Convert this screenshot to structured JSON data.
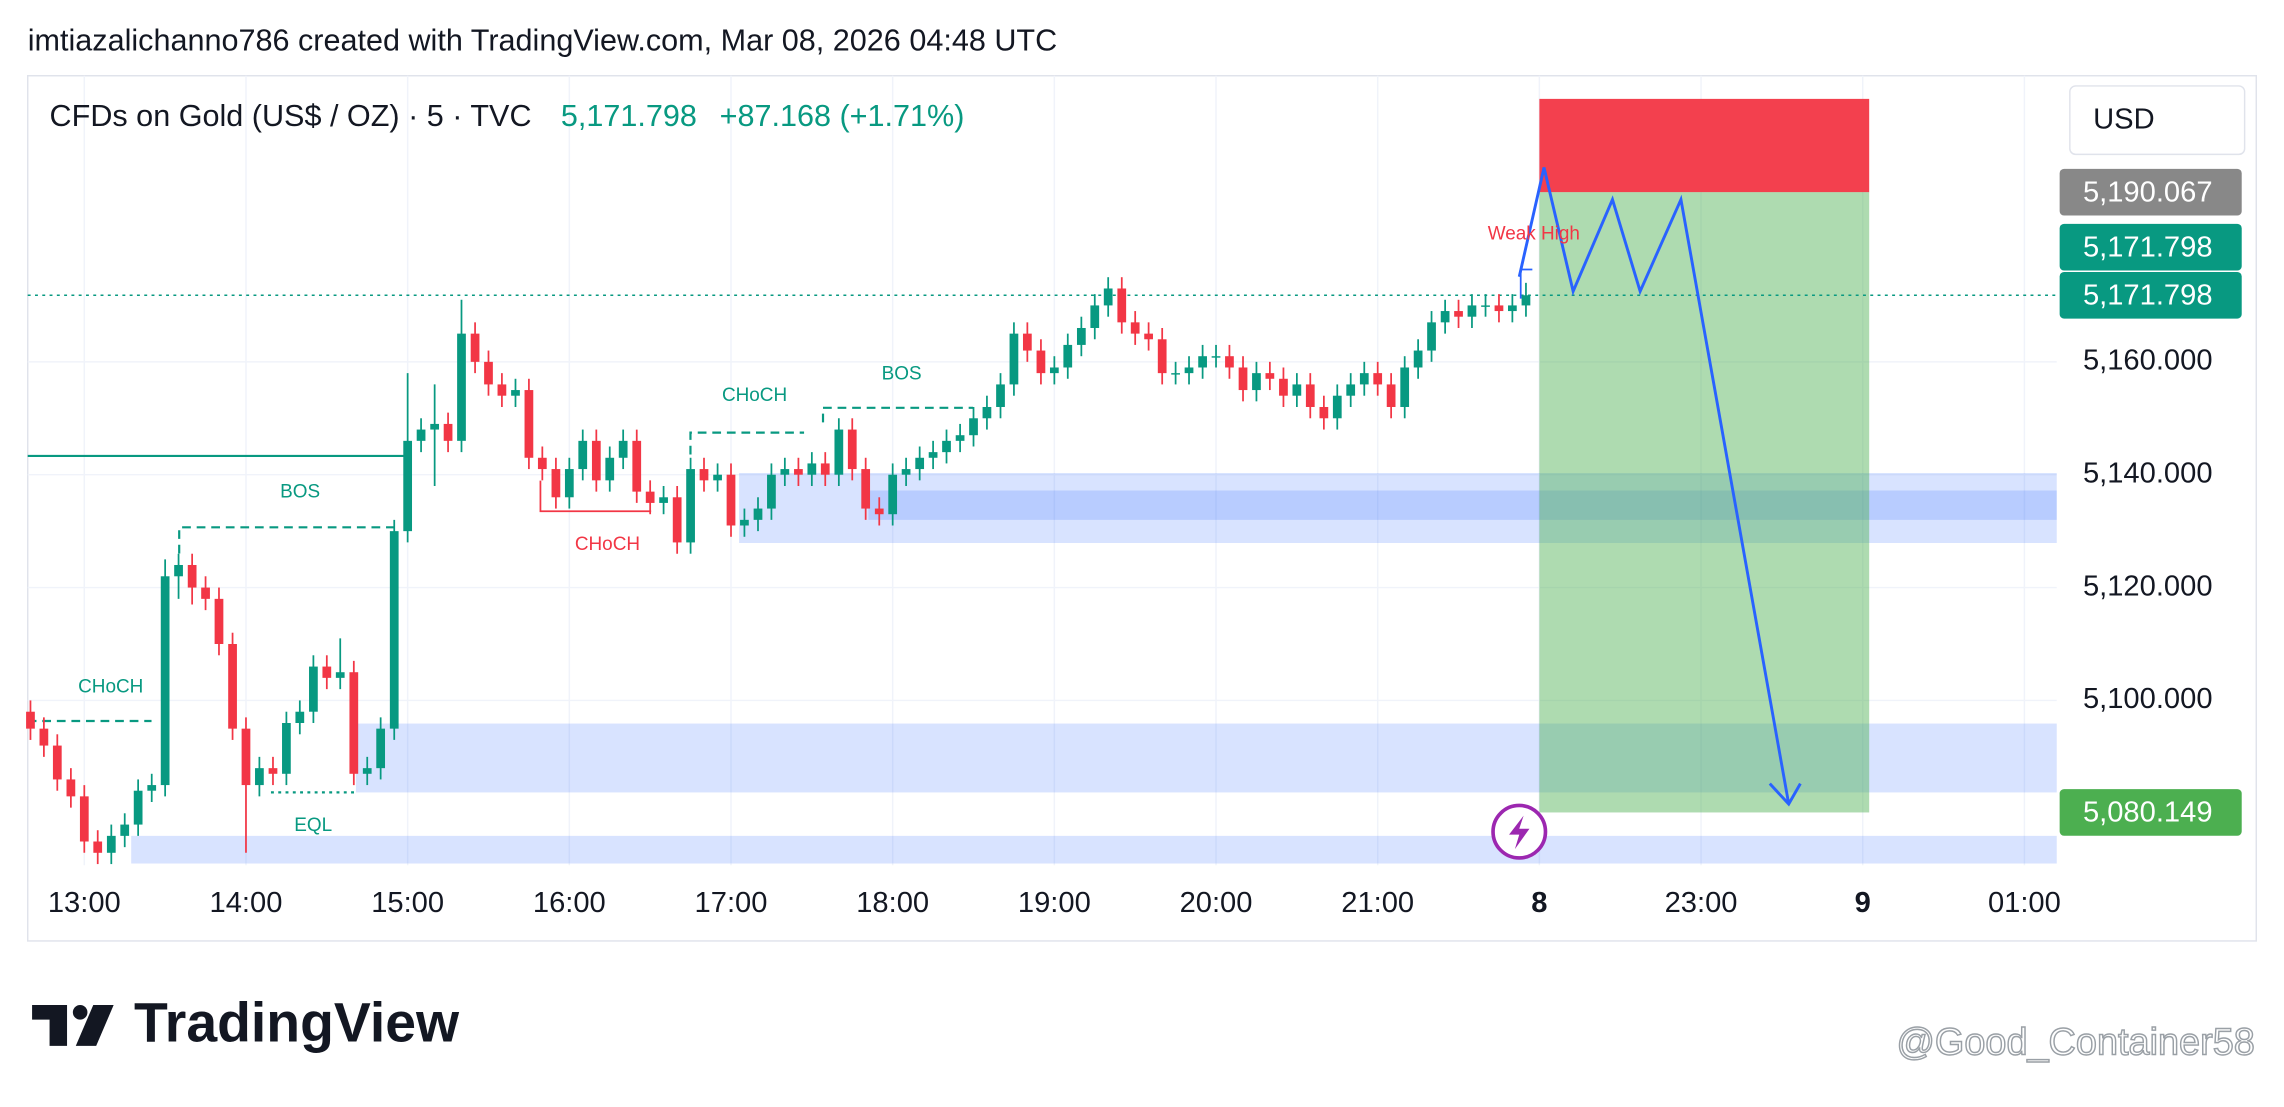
{
  "chart_data": {
    "type": "candlestick",
    "header": "imtiazalichanno786 created with TradingView.com, Mar 08, 2026 04:48 UTC",
    "title": "CFDs on Gold (US$ / OZ) · 5 · TVC",
    "last_price": "5,171.798",
    "change": "+87.168 (+1.71%)",
    "currency": "USD",
    "logo": "TradingView",
    "watermark": "@Good_Container58",
    "up_color": "#089981",
    "down_color": "#f23645",
    "xlim": [
      12.65,
      25.2
    ],
    "ylim": [
      5070.8,
      5210.7
    ],
    "xticks": [
      {
        "value": 13,
        "label": "13:00"
      },
      {
        "value": 14,
        "label": "14:00"
      },
      {
        "value": 15,
        "label": "15:00"
      },
      {
        "value": 16,
        "label": "16:00"
      },
      {
        "value": 17,
        "label": "17:00"
      },
      {
        "value": 18,
        "label": "18:00"
      },
      {
        "value": 19,
        "label": "19:00"
      },
      {
        "value": 20,
        "label": "20:00"
      },
      {
        "value": 21,
        "label": "21:00"
      },
      {
        "value": 22,
        "label": "8"
      },
      {
        "value": 23,
        "label": "23:00"
      },
      {
        "value": 24,
        "label": "9"
      },
      {
        "value": 25,
        "label": "01:00"
      }
    ],
    "yticks": [
      {
        "value": 5100,
        "label": "5,100.000"
      },
      {
        "value": 5120,
        "label": "5,120.000"
      },
      {
        "value": 5140,
        "label": "5,140.000"
      },
      {
        "value": 5160,
        "label": "5,160.000"
      }
    ],
    "grid": true,
    "price_labels": [
      {
        "value": 5190.067,
        "label": "5,190.067",
        "color": "#888888"
      },
      {
        "value": 5171.798,
        "label": "5,171.798",
        "color": "#089981"
      },
      {
        "value": 5171.798,
        "label": "5,171.798",
        "color": "#089981"
      },
      {
        "value": 5080.149,
        "label": "5,080.149",
        "color": "#4caf50"
      }
    ],
    "x": [
      12.667,
      12.75,
      12.833,
      12.917,
      13,
      13.083,
      13.167,
      13.25,
      13.333,
      13.417,
      13.5,
      13.583,
      13.667,
      13.75,
      13.833,
      13.917,
      14,
      14.083,
      14.167,
      14.25,
      14.333,
      14.417,
      14.5,
      14.583,
      14.667,
      14.75,
      14.833,
      14.917,
      15,
      15.083,
      15.167,
      15.25,
      15.333,
      15.417,
      15.5,
      15.583,
      15.667,
      15.75,
      15.833,
      15.917,
      16,
      16.083,
      16.167,
      16.25,
      16.333,
      16.417,
      16.5,
      16.583,
      16.667,
      16.75,
      16.833,
      16.917,
      17,
      17.083,
      17.167,
      17.25,
      17.333,
      17.417,
      17.5,
      17.583,
      17.667,
      17.75,
      17.833,
      17.917,
      18,
      18.083,
      18.167,
      18.25,
      18.333,
      18.417,
      18.5,
      18.583,
      18.667,
      18.75,
      18.833,
      18.917,
      19,
      19.083,
      19.167,
      19.25,
      19.333,
      19.417,
      19.5,
      19.583,
      19.667,
      19.75,
      19.833,
      19.917,
      20,
      20.083,
      20.167,
      20.25,
      20.333,
      20.417,
      20.5,
      20.583,
      20.667,
      20.75,
      20.833,
      20.917,
      21,
      21.083,
      21.167,
      21.25,
      21.333,
      21.417,
      21.5,
      21.583,
      21.667,
      21.75,
      21.833,
      21.917
    ],
    "open": [
      5098,
      5095,
      5092,
      5086,
      5083,
      5075,
      5073,
      5076,
      5078,
      5084,
      5085,
      5122,
      5124,
      5120,
      5118,
      5110,
      5095,
      5085,
      5088,
      5087,
      5096,
      5098,
      5106,
      5104,
      5105,
      5087,
      5088,
      5095,
      5130,
      5146,
      5148,
      5149,
      5146,
      5165,
      5160,
      5156,
      5154,
      5155,
      5143,
      5141,
      5136,
      5141,
      5146,
      5139,
      5143,
      5146,
      5137,
      5135,
      5136,
      5128,
      5141,
      5139,
      5140,
      5131,
      5132,
      5134,
      5140,
      5141,
      5140,
      5142,
      5140,
      5148,
      5141,
      5134,
      5133,
      5140,
      5141,
      5143,
      5144,
      5146,
      5147,
      5150,
      5152,
      5156,
      5165,
      5162,
      5158,
      5159,
      5163,
      5166,
      5170,
      5173,
      5167,
      5165,
      5164,
      5158,
      5158,
      5159,
      5161,
      5161,
      5159,
      5155,
      5158,
      5157,
      5154,
      5156,
      5152,
      5150,
      5154,
      5156,
      5158,
      5156,
      5152,
      5159,
      5162,
      5167,
      5169,
      5168,
      5170,
      5170,
      5169,
      5170
    ],
    "high": [
      5100,
      5097,
      5094,
      5088,
      5085,
      5077,
      5078,
      5080,
      5086,
      5087,
      5125,
      5126,
      5126,
      5122,
      5120,
      5112,
      5097,
      5090,
      5090,
      5098,
      5100,
      5108,
      5108,
      5111,
      5107,
      5090,
      5097,
      5132,
      5158,
      5150,
      5156,
      5151,
      5171,
      5167,
      5162,
      5158,
      5157,
      5157,
      5145,
      5143,
      5143,
      5148,
      5148,
      5145,
      5148,
      5148,
      5139,
      5138,
      5138,
      5143,
      5143,
      5142,
      5142,
      5134,
      5136,
      5142,
      5143,
      5143,
      5144,
      5144,
      5150,
      5150,
      5143,
      5136,
      5142,
      5143,
      5145,
      5146,
      5148,
      5149,
      5152,
      5154,
      5158,
      5167,
      5167,
      5164,
      5161,
      5165,
      5168,
      5172,
      5175,
      5175,
      5169,
      5167,
      5166,
      5160,
      5161,
      5163,
      5163,
      5163,
      5161,
      5160,
      5160,
      5159,
      5158,
      5158,
      5154,
      5156,
      5158,
      5160,
      5160,
      5158,
      5161,
      5164,
      5169,
      5171,
      5171,
      5172,
      5172,
      5172,
      5172,
      5174
    ],
    "low": [
      5093,
      5090,
      5084,
      5081,
      5073,
      5071,
      5071,
      5074,
      5076,
      5082,
      5083,
      5118,
      5117,
      5116,
      5108,
      5093,
      5073,
      5083,
      5085,
      5085,
      5094,
      5096,
      5102,
      5102,
      5085,
      5085,
      5086,
      5093,
      5128,
      5144,
      5138,
      5144,
      5144,
      5158,
      5154,
      5152,
      5152,
      5141,
      5139,
      5134,
      5134,
      5139,
      5137,
      5137,
      5141,
      5135,
      5133,
      5133,
      5126,
      5126,
      5137,
      5137,
      5129,
      5129,
      5130,
      5132,
      5138,
      5138,
      5138,
      5138,
      5138,
      5139,
      5132,
      5131,
      5131,
      5138,
      5139,
      5141,
      5142,
      5144,
      5145,
      5148,
      5150,
      5154,
      5160,
      5156,
      5156,
      5157,
      5161,
      5164,
      5168,
      5165,
      5163,
      5162,
      5156,
      5156,
      5156,
      5157,
      5159,
      5157,
      5153,
      5153,
      5155,
      5152,
      5152,
      5150,
      5148,
      5148,
      5152,
      5154,
      5154,
      5150,
      5150,
      5157,
      5160,
      5165,
      5166,
      5166,
      5168,
      5167,
      5167,
      5168
    ],
    "close": [
      5095,
      5092,
      5086,
      5083,
      5075,
      5073,
      5076,
      5078,
      5084,
      5085,
      5122,
      5124,
      5120,
      5118,
      5110,
      5095,
      5085,
      5088,
      5087,
      5096,
      5098,
      5106,
      5104,
      5105,
      5087,
      5088,
      5095,
      5130,
      5146,
      5148,
      5149,
      5146,
      5165,
      5160,
      5156,
      5154,
      5155,
      5143,
      5141,
      5136,
      5141,
      5146,
      5139,
      5143,
      5146,
      5137,
      5135,
      5136,
      5128,
      5141,
      5139,
      5140,
      5131,
      5132,
      5134,
      5140,
      5141,
      5140,
      5142,
      5140,
      5148,
      5141,
      5134,
      5133,
      5140,
      5141,
      5143,
      5144,
      5146,
      5147,
      5150,
      5152,
      5156,
      5165,
      5162,
      5158,
      5159,
      5163,
      5166,
      5170,
      5173,
      5167,
      5165,
      5164,
      5158,
      5158,
      5159,
      5161,
      5161,
      5159,
      5155,
      5158,
      5157,
      5154,
      5156,
      5152,
      5150,
      5154,
      5156,
      5158,
      5156,
      5152,
      5159,
      5162,
      5167,
      5169,
      5168,
      5170,
      5170,
      5169,
      5170,
      5171.8
    ],
    "zones": [
      {
        "x": [
          17.05,
          25.2
        ],
        "y": [
          5127.9,
          5140.3
        ],
        "color": "#2962ff"
      },
      {
        "x": [
          17.85,
          25.2
        ],
        "y": [
          5132,
          5137.2
        ],
        "color": "#2962ff"
      },
      {
        "x": [
          14.68,
          25.2
        ],
        "y": [
          5083.7,
          5095.9
        ],
        "color": "#2962ff"
      },
      {
        "x": [
          13.29,
          25.2
        ],
        "y": [
          5071.1,
          5076
        ],
        "color": "#2962ff"
      }
    ],
    "position": {
      "x": [
        22,
        24.04
      ],
      "entry": 5190.067,
      "stop": 5206.6,
      "target": 5080.149
    },
    "annotations": [
      {
        "text": "CHoCH",
        "color": "#089981"
      },
      {
        "text": "BOS",
        "color": "#089981"
      },
      {
        "text": "CHoCH",
        "color": "#f23645"
      },
      {
        "text": "CHoCH",
        "color": "#089981"
      },
      {
        "text": "BOS",
        "color": "#089981"
      },
      {
        "text": "EQL",
        "color": "#089981"
      },
      {
        "text": "Weak High",
        "color": "#f23645"
      }
    ]
  }
}
